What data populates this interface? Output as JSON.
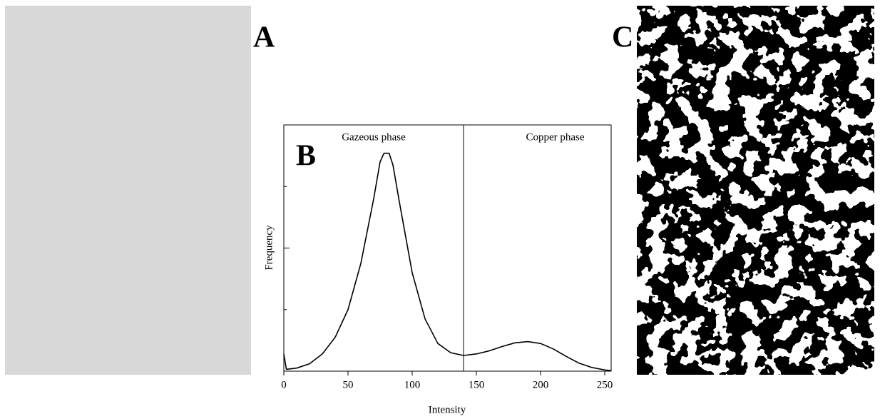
{
  "panels": [
    "A",
    "B",
    "C"
  ],
  "chart_data": {
    "type": "line",
    "x_label": "Intensity",
    "y_label": "Frequency",
    "annotations": [
      "Gazeous phase",
      "Copper phase"
    ],
    "divider_x": 140,
    "x": [
      0,
      2,
      10,
      20,
      30,
      40,
      50,
      60,
      70,
      75,
      78,
      82,
      85,
      90,
      100,
      110,
      120,
      130,
      140,
      150,
      160,
      170,
      180,
      190,
      200,
      210,
      220,
      230,
      240,
      250,
      255
    ],
    "values": [
      0.28,
      0.03,
      0.05,
      0.12,
      0.28,
      0.55,
      1.0,
      1.75,
      2.8,
      3.4,
      3.54,
      3.54,
      3.35,
      2.75,
      1.6,
      0.85,
      0.45,
      0.3,
      0.255,
      0.28,
      0.33,
      0.4,
      0.46,
      0.48,
      0.45,
      0.36,
      0.24,
      0.13,
      0.06,
      0.02,
      0.01
    ],
    "color": "#000000",
    "xlim": [
      0,
      255
    ],
    "xticks": [
      0,
      50,
      100,
      150,
      200,
      250
    ],
    "ylim": [
      0,
      4
    ],
    "yticks": [
      0,
      1,
      2,
      3,
      4
    ]
  }
}
